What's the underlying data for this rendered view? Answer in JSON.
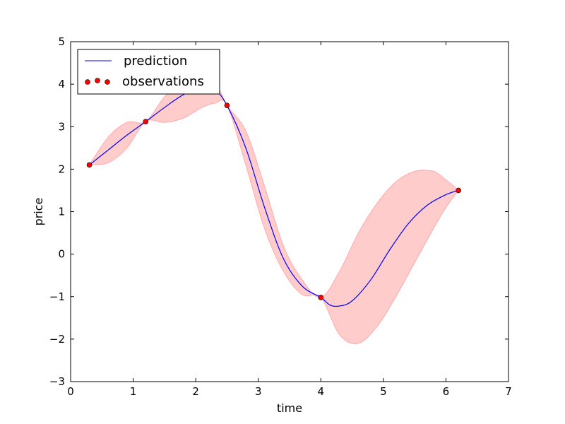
{
  "chart_data": {
    "type": "line",
    "xlabel": "time",
    "ylabel": "price",
    "xlim": [
      0,
      7
    ],
    "ylim": [
      -3,
      5
    ],
    "xticks": [
      0,
      1,
      2,
      3,
      4,
      5,
      6,
      7
    ],
    "yticks": [
      -3,
      -2,
      -1,
      0,
      1,
      2,
      3,
      4,
      5
    ],
    "xtick_labels": [
      "0",
      "1",
      "2",
      "3",
      "4",
      "5",
      "6",
      "7"
    ],
    "ytick_labels": [
      "−3",
      "−2",
      "−1",
      "0",
      "1",
      "2",
      "3",
      "4",
      "5"
    ],
    "grid": false,
    "legend_position": "top-left",
    "series": [
      {
        "name": "prediction",
        "kind": "line",
        "color": "#0000ff",
        "x": [
          0.3,
          0.6,
          0.9,
          1.2,
          1.5,
          1.8,
          2.1,
          2.3,
          2.5,
          2.8,
          3.1,
          3.4,
          3.7,
          4.0,
          4.15,
          4.3,
          4.5,
          4.8,
          5.1,
          5.4,
          5.7,
          6.0,
          6.2
        ],
        "y": [
          2.1,
          2.45,
          2.8,
          3.12,
          3.45,
          3.75,
          3.92,
          3.88,
          3.5,
          2.5,
          1.1,
          -0.1,
          -0.75,
          -1.02,
          -1.2,
          -1.22,
          -1.1,
          -0.6,
          0.1,
          0.72,
          1.15,
          1.4,
          1.5
        ]
      },
      {
        "name": "observations",
        "kind": "scatter",
        "color": "#ff0000",
        "x": [
          0.3,
          1.2,
          2.5,
          4.0,
          6.2
        ],
        "y": [
          2.1,
          3.12,
          3.5,
          -1.02,
          1.5
        ]
      }
    ],
    "confidence_band": {
      "color": "#ffcccc",
      "edge_color": "#ffaaaa",
      "x": [
        0.3,
        0.6,
        0.9,
        1.2,
        1.5,
        1.8,
        2.1,
        2.3,
        2.5,
        2.8,
        3.1,
        3.4,
        3.7,
        4.0,
        4.3,
        4.6,
        4.9,
        5.2,
        5.5,
        5.8,
        6.0,
        6.2
      ],
      "upper": [
        2.1,
        2.75,
        3.1,
        3.12,
        3.7,
        4.1,
        4.25,
        4.1,
        3.5,
        2.9,
        1.6,
        0.2,
        -0.6,
        -1.02,
        -0.4,
        0.5,
        1.2,
        1.7,
        1.95,
        1.95,
        1.75,
        1.5
      ],
      "lower": [
        2.1,
        2.15,
        2.5,
        3.12,
        3.1,
        3.2,
        3.45,
        3.55,
        3.5,
        2.1,
        0.6,
        -0.4,
        -0.95,
        -1.02,
        -1.9,
        -2.1,
        -1.7,
        -1.0,
        -0.2,
        0.6,
        1.1,
        1.5
      ]
    }
  }
}
